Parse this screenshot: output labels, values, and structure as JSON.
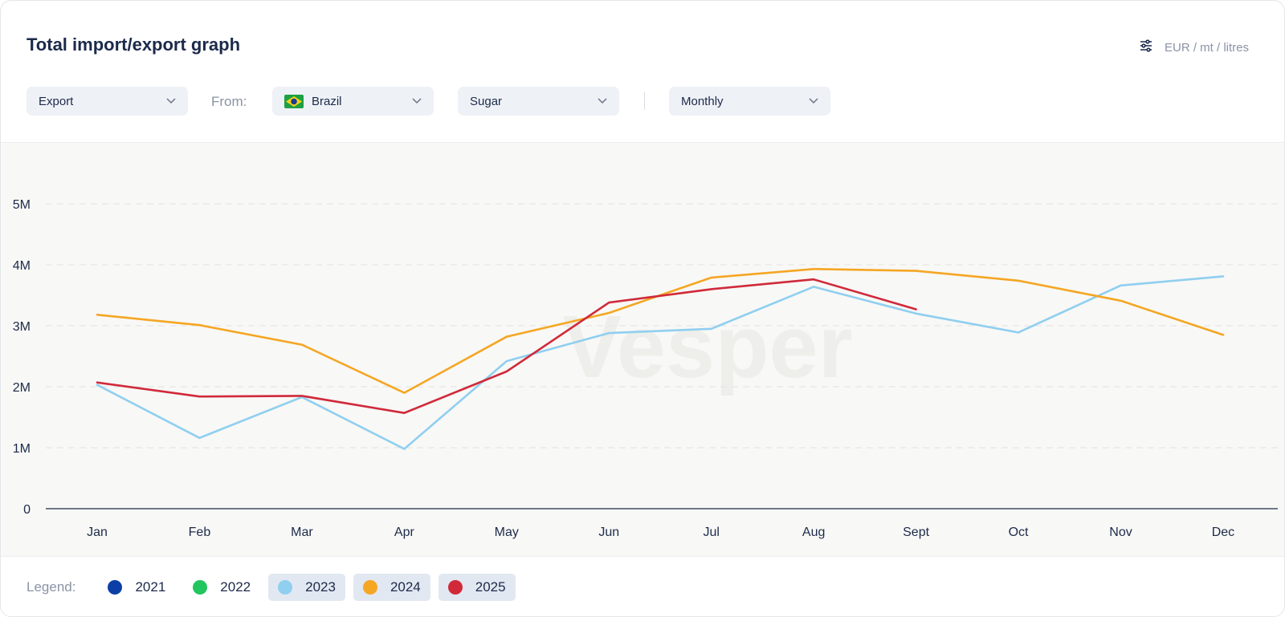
{
  "header": {
    "title": "Total import/export graph",
    "units_label": "EUR / mt / litres",
    "units_icon": "sliders-icon"
  },
  "filters": {
    "flow": {
      "value": "Export"
    },
    "from_label": "From:",
    "country": {
      "value": "Brazil",
      "flag_icon": "brazil-flag-icon"
    },
    "product": {
      "value": "Sugar"
    },
    "period": {
      "value": "Monthly"
    }
  },
  "watermark": "Vesper",
  "legend": {
    "label": "Legend:",
    "items": [
      {
        "label": "2021",
        "color": "#0b3fa6",
        "active": false
      },
      {
        "label": "2022",
        "color": "#22c55e",
        "active": false
      },
      {
        "label": "2023",
        "color": "#8fcff0",
        "active": true
      },
      {
        "label": "2024",
        "color": "#f5a623",
        "active": true
      },
      {
        "label": "2025",
        "color": "#d02a3a",
        "active": true
      }
    ]
  },
  "chart_data": {
    "type": "line",
    "categories": [
      "Jan",
      "Feb",
      "Mar",
      "Apr",
      "May",
      "Jun",
      "Jul",
      "Aug",
      "Sept",
      "Oct",
      "Nov",
      "Dec"
    ],
    "ylim": [
      0,
      5500000
    ],
    "yticks": [
      0,
      1000000,
      2000000,
      3000000,
      4000000,
      5000000
    ],
    "ytick_labels": [
      "0",
      "1M",
      "2M",
      "3M",
      "4M",
      "5M"
    ],
    "grid": true,
    "series": [
      {
        "name": "2023",
        "color": "#8fcff0",
        "values": [
          2030000,
          1160000,
          1830000,
          980000,
          2420000,
          2880000,
          2950000,
          3640000,
          3200000,
          2890000,
          3660000,
          3810000
        ]
      },
      {
        "name": "2024",
        "color": "#f5a623",
        "values": [
          3180000,
          3010000,
          2690000,
          1900000,
          2820000,
          3210000,
          3790000,
          3930000,
          3900000,
          3740000,
          3410000,
          2850000
        ]
      },
      {
        "name": "2025",
        "color": "#d02a3a",
        "values": [
          2070000,
          1840000,
          1850000,
          1570000,
          2250000,
          3380000,
          3600000,
          3760000,
          3270000,
          null,
          null,
          null
        ]
      }
    ]
  }
}
